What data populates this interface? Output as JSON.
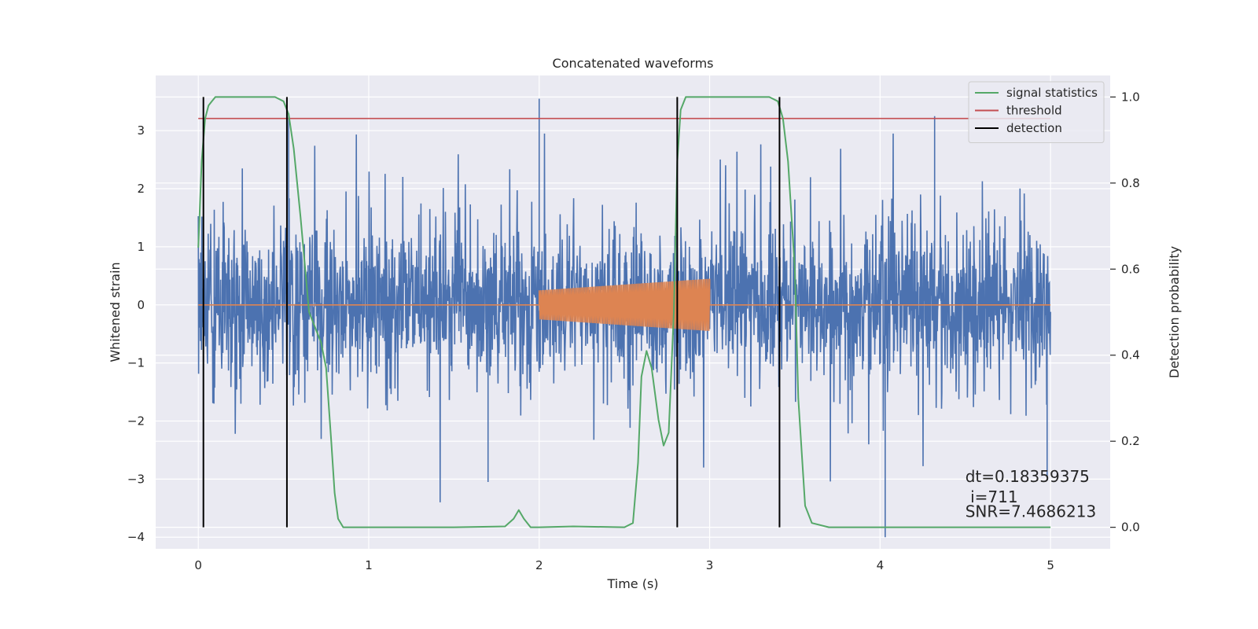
{
  "chart_data": {
    "type": "line",
    "title": "Concatenated waveforms",
    "xlabel": "Time (s)",
    "ylabel": "Whitened strain",
    "y2label": "Detection probability",
    "xlim": [
      -0.25,
      5.35
    ],
    "ylim": [
      -4.2,
      3.95
    ],
    "y2lim": [
      -0.05,
      1.05
    ],
    "xticks": [
      0,
      1,
      2,
      3,
      4,
      5
    ],
    "xtick_labels": [
      "0",
      "1",
      "2",
      "3",
      "4",
      "5"
    ],
    "yticks": [
      -4,
      -3,
      -2,
      -1,
      0,
      1,
      2,
      3
    ],
    "ytick_labels": [
      "−4",
      "−3",
      "−2",
      "−1",
      "0",
      "1",
      "2",
      "3"
    ],
    "y2ticks": [
      0.0,
      0.2,
      0.4,
      0.6,
      0.8,
      1.0
    ],
    "y2tick_labels": [
      "0.0",
      "0.2",
      "0.4",
      "0.6",
      "0.8",
      "1.0"
    ],
    "grid": true,
    "legend_position": "top-right",
    "colors": {
      "strain": "#4c72b0",
      "injection": "#dd8452",
      "signal_statistics": "#55a868",
      "threshold": "#c44e52",
      "detection": "#000000",
      "plot_bg": "#eaeaf2",
      "grid": "#ffffff"
    },
    "strain": {
      "x_range": [
        0,
        5
      ],
      "noise_core_std": 0.55,
      "noise_peak_range": [
        -4.0,
        3.55
      ],
      "outliers": [
        {
          "x": 2.0,
          "y": 3.55
        },
        {
          "x": 4.03,
          "y": -4.0
        },
        {
          "x": 0.53,
          "y": 3.3
        },
        {
          "x": 4.32,
          "y": 3.25
        },
        {
          "x": 1.7,
          "y": -3.05
        },
        {
          "x": 4.98,
          "y": -2.95
        }
      ]
    },
    "injection": {
      "x_range": [
        2.0,
        3.0
      ],
      "amplitude_start": 0.25,
      "amplitude_end": 0.45,
      "baseline": 0.0
    },
    "legend": [
      {
        "label": "signal statistics",
        "color": "#55a868"
      },
      {
        "label": "threshold",
        "color": "#c44e52"
      },
      {
        "label": "detection",
        "color": "#000000"
      }
    ],
    "threshold": 0.95,
    "detections": [
      0.03,
      0.52,
      2.81,
      3.41
    ],
    "signal_statistics": {
      "axis": "right",
      "x": [
        0.0,
        0.02,
        0.04,
        0.06,
        0.08,
        0.1,
        0.15,
        0.3,
        0.45,
        0.5,
        0.53,
        0.56,
        0.6,
        0.65,
        0.7,
        0.72,
        0.75,
        0.78,
        0.8,
        0.82,
        0.85,
        1.0,
        1.5,
        1.8,
        1.85,
        1.88,
        1.91,
        1.95,
        2.0,
        2.2,
        2.5,
        2.55,
        2.58,
        2.6,
        2.63,
        2.66,
        2.7,
        2.73,
        2.76,
        2.79,
        2.81,
        2.83,
        2.86,
        2.9,
        3.0,
        3.2,
        3.35,
        3.4,
        3.43,
        3.46,
        3.5,
        3.52,
        3.56,
        3.6,
        3.7,
        4.0,
        5.0
      ],
      "y": [
        0.65,
        0.85,
        0.95,
        0.98,
        0.99,
        1.0,
        1.0,
        1.0,
        1.0,
        0.99,
        0.96,
        0.88,
        0.72,
        0.5,
        0.45,
        0.43,
        0.37,
        0.2,
        0.08,
        0.02,
        0.0,
        0.0,
        0.0,
        0.002,
        0.02,
        0.04,
        0.02,
        0.0,
        0.0,
        0.002,
        0.0,
        0.01,
        0.15,
        0.35,
        0.41,
        0.37,
        0.25,
        0.19,
        0.22,
        0.5,
        0.85,
        0.97,
        1.0,
        1.0,
        1.0,
        1.0,
        1.0,
        0.99,
        0.95,
        0.85,
        0.6,
        0.3,
        0.05,
        0.01,
        0.0,
        0.0,
        0.0
      ]
    },
    "annotations": [
      {
        "text": "dt=0.18359375",
        "x": 4.5,
        "y": -3.05
      },
      {
        "text": " i=711",
        "x": 4.5,
        "y": -3.4
      },
      {
        "text": "SNR=7.4686213",
        "x": 4.5,
        "y": -3.65
      }
    ]
  }
}
